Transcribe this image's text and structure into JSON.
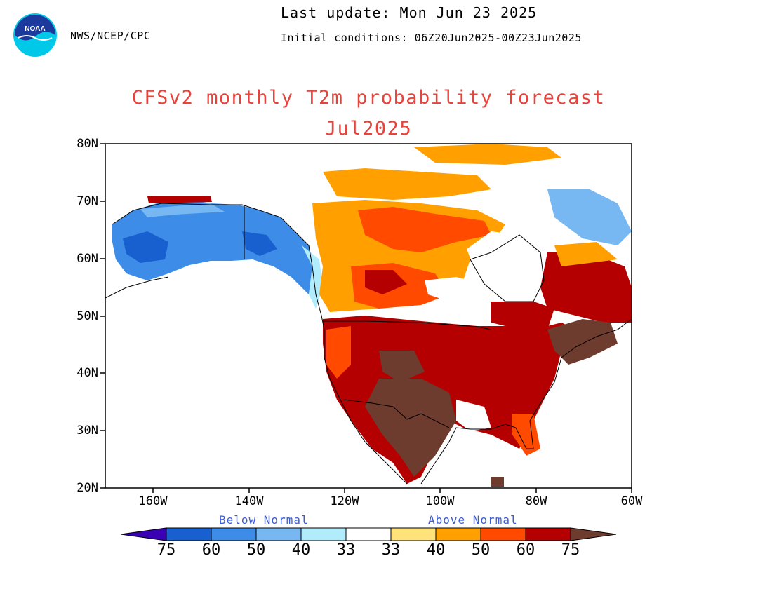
{
  "header": {
    "agency": "NWS/NCEP/CPC",
    "last_update": "Last update: Mon Jun 23 2025",
    "initial_conditions": "Initial conditions: 06Z20Jun2025-00Z23Jun2025",
    "logo_text": "NOAA"
  },
  "title": "CFSv2 monthly T2m probability forecast",
  "subtitle": "Jul2025",
  "axes": {
    "lat_ticks": [
      "80N",
      "70N",
      "60N",
      "50N",
      "40N",
      "30N",
      "20N"
    ],
    "lon_ticks": [
      "160W",
      "140W",
      "120W",
      "100W",
      "80W",
      "60W"
    ],
    "lat_range": [
      20,
      80
    ],
    "lon_range": [
      -170,
      -60
    ]
  },
  "legend": {
    "below_label": "Below Normal",
    "above_label": "Above Normal",
    "labels": [
      "75",
      "60",
      "50",
      "40",
      "33",
      "33",
      "40",
      "50",
      "60",
      "75"
    ],
    "colors": {
      "below": [
        "#3a00b4",
        "#1860d0",
        "#3c8ce8",
        "#78b8f2",
        "#b0ecfc"
      ],
      "neutral": "#ffffff",
      "above": [
        "#ffe27a",
        "#ffa000",
        "#ff4a00",
        "#b40000",
        "#6e3c2e"
      ]
    }
  },
  "regions": {
    "alaska": "below-normal 50-60%",
    "northern_canada": "above-normal 40-50%",
    "hudson_bay": "near-normal",
    "western_us": "above-normal 60-75%",
    "southern_plains_texas": "above-normal >75%",
    "eastern_us": "above-normal 60-75%",
    "new_england_maritimes": "above-normal >75%",
    "northeastern_canada": "below-normal 40-50%"
  }
}
